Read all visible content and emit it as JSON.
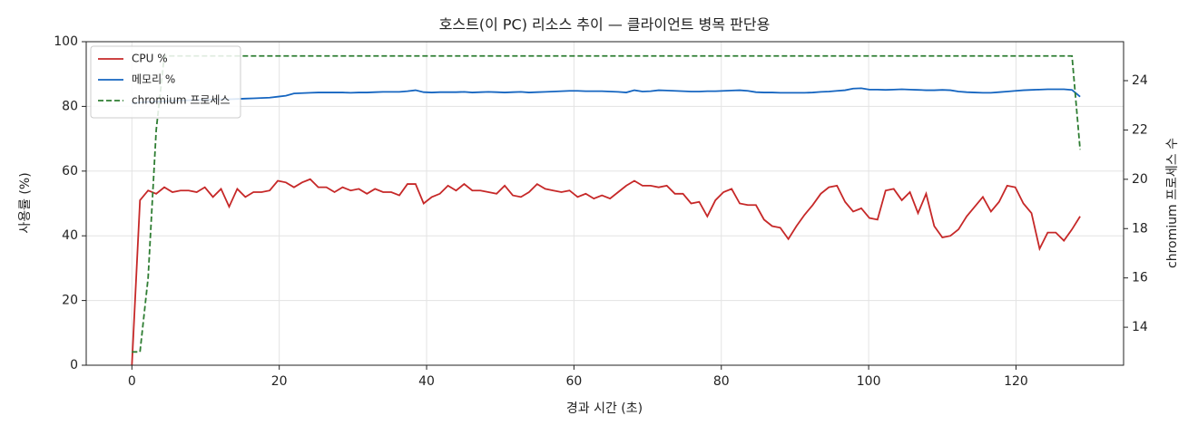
{
  "chart_data": {
    "type": "line",
    "title": "호스트(이 PC) 리소스 추이 — 클라이언트 병목 판단용",
    "xlabel": "경과 시간 (초)",
    "ylabel": "사용률 (%)",
    "y2label": "chromium 프로세스 수",
    "x": [
      0,
      1.1,
      2.2,
      3.3,
      4.4,
      5.5,
      6.6,
      7.7,
      8.8,
      9.9,
      11,
      12.1,
      13.2,
      14.3,
      15.4,
      16.5,
      17.6,
      18.7,
      19.8,
      20.9,
      22,
      23.1,
      24.2,
      25.3,
      26.4,
      27.5,
      28.6,
      29.7,
      30.8,
      31.9,
      33,
      34.1,
      35.2,
      36.3,
      37.4,
      38.5,
      39.6,
      40.7,
      41.8,
      42.9,
      44,
      45.1,
      46.2,
      47.3,
      48.4,
      49.5,
      50.6,
      51.7,
      52.8,
      53.9,
      55,
      56.1,
      57.2,
      58.3,
      59.4,
      60.5,
      61.6,
      62.7,
      63.8,
      64.9,
      66,
      67.1,
      68.2,
      69.3,
      70.4,
      71.5,
      72.6,
      73.7,
      74.8,
      75.9,
      77,
      78.1,
      79.2,
      80.3,
      81.4,
      82.5,
      83.6,
      84.7,
      85.8,
      86.9,
      88,
      89.1,
      90.2,
      91.3,
      92.4,
      93.5,
      94.6,
      95.7,
      96.8,
      97.9,
      99,
      100.1,
      101.2,
      102.3,
      103.4,
      104.5,
      105.6,
      106.7,
      107.8,
      108.9,
      110,
      111.1,
      112.2,
      113.3,
      114.4,
      115.5,
      116.6,
      117.7,
      118.8,
      119.9,
      121,
      122.1,
      123.2,
      124.3,
      125.4,
      126.5,
      127.6,
      128.7
    ],
    "series": [
      {
        "name": "CPU %",
        "color": "#c62828",
        "linestyle": "solid",
        "axis": "y",
        "values": [
          0,
          51,
          54,
          53,
          55,
          53.5,
          54,
          54,
          53.5,
          55,
          52,
          54.5,
          49,
          54.5,
          52,
          53.5,
          53.5,
          54,
          57,
          56.5,
          55,
          56.5,
          57.5,
          55,
          55,
          53.5,
          55,
          54,
          54.5,
          53,
          54.5,
          53.5,
          53.5,
          52.5,
          56,
          56,
          50,
          52,
          53,
          55.5,
          54,
          56,
          54,
          54,
          53.5,
          53,
          55.5,
          52.5,
          52,
          53.5,
          56,
          54.5,
          54,
          53.5,
          54,
          52,
          53,
          51.5,
          52.5,
          51.5,
          53.5,
          55.5,
          57,
          55.5,
          55.5,
          55,
          55.5,
          53,
          53,
          50,
          50.5,
          46,
          51,
          53.5,
          54.5,
          50,
          49.5,
          49.5,
          45,
          43,
          42.5,
          39,
          43,
          46.5,
          49.5,
          53,
          55,
          55.5,
          50.5,
          47.5,
          48.5,
          45.5,
          45,
          54,
          54.5,
          51,
          53.5,
          47,
          53,
          43,
          39.5,
          40,
          42,
          46,
          49,
          52,
          47.5,
          50.5,
          55.5,
          55,
          50,
          47,
          36,
          41,
          41,
          38.5,
          42,
          46
        ]
      },
      {
        "name": "메모리 %",
        "color": "#1565c0",
        "linestyle": "solid",
        "axis": "y",
        "values": [
          81,
          81.2,
          81.4,
          81.5,
          81.6,
          81.7,
          81.8,
          81.9,
          82,
          82,
          82.1,
          82.2,
          82.2,
          82.3,
          82.4,
          82.5,
          82.6,
          82.7,
          83,
          83.3,
          84,
          84.1,
          84.2,
          84.3,
          84.3,
          84.3,
          84.3,
          84.2,
          84.3,
          84.3,
          84.4,
          84.5,
          84.5,
          84.5,
          84.7,
          85,
          84.4,
          84.3,
          84.4,
          84.4,
          84.4,
          84.5,
          84.3,
          84.4,
          84.5,
          84.4,
          84.3,
          84.4,
          84.5,
          84.3,
          84.4,
          84.5,
          84.6,
          84.7,
          84.8,
          84.8,
          84.7,
          84.7,
          84.7,
          84.6,
          84.5,
          84.3,
          85,
          84.6,
          84.7,
          85,
          84.9,
          84.8,
          84.7,
          84.6,
          84.6,
          84.7,
          84.7,
          84.8,
          84.9,
          85,
          84.8,
          84.4,
          84.3,
          84.3,
          84.2,
          84.2,
          84.2,
          84.2,
          84.3,
          84.5,
          84.6,
          84.8,
          85,
          85.5,
          85.6,
          85.2,
          85.2,
          85.1,
          85.2,
          85.3,
          85.2,
          85.1,
          85,
          85,
          85.1,
          85,
          84.6,
          84.4,
          84.3,
          84.2,
          84.2,
          84.4,
          84.6,
          84.8,
          85,
          85.1,
          85.2,
          85.3,
          85.3,
          85.3,
          85.1,
          83
        ]
      },
      {
        "name": "chromium 프로세스",
        "color": "#2e7d32",
        "linestyle": "dashed",
        "axis": "y2",
        "values": [
          13,
          13,
          16,
          22,
          25,
          25,
          25,
          25,
          25,
          25,
          25,
          25,
          25,
          25,
          25,
          25,
          25,
          25,
          25,
          25,
          25,
          25,
          25,
          25,
          25,
          25,
          25,
          25,
          25,
          25,
          25,
          25,
          25,
          25,
          25,
          25,
          25,
          25,
          25,
          25,
          25,
          25,
          25,
          25,
          25,
          25,
          25,
          25,
          25,
          25,
          25,
          25,
          25,
          25,
          25,
          25,
          25,
          25,
          25,
          25,
          25,
          25,
          25,
          25,
          25,
          25,
          25,
          25,
          25,
          25,
          25,
          25,
          25,
          25,
          25,
          25,
          25,
          25,
          25,
          25,
          25,
          25,
          25,
          25,
          25,
          25,
          25,
          25,
          25,
          25,
          25,
          25,
          25,
          25,
          25,
          25,
          25,
          25,
          25,
          25,
          25,
          25,
          25,
          25,
          25,
          25,
          25,
          25,
          25,
          25,
          25,
          25,
          25,
          25,
          25,
          25,
          25,
          21.2
        ]
      }
    ],
    "xlim": [
      -6.2,
      134.6
    ],
    "xticks": [
      0,
      20,
      40,
      60,
      80,
      100,
      120
    ],
    "ylim": [
      0,
      100
    ],
    "yticks": [
      0,
      20,
      40,
      60,
      80,
      100
    ],
    "y2lim": [
      12.46,
      25.58
    ],
    "y2ticks": [
      14,
      16,
      18,
      20,
      22,
      24
    ],
    "grid": true,
    "legend": "upper-left"
  }
}
